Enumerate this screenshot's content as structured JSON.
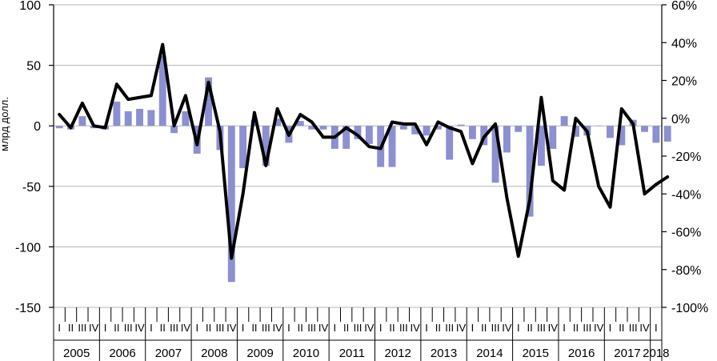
{
  "chart_data": {
    "type": "bar+line",
    "title": "",
    "ylabel": "млрд долл.",
    "ylim_left": [
      -150,
      100
    ],
    "yticks_left": [
      100,
      50,
      0,
      -50,
      -100,
      -150
    ],
    "ylim_right": [
      -100,
      60
    ],
    "yticks_right": [
      "60%",
      "40%",
      "20%",
      "0%",
      "-20%",
      "-40%",
      "-60%",
      "-80%",
      "-100%"
    ],
    "yticks_right_values": [
      60,
      40,
      20,
      0,
      -20,
      -40,
      -60,
      -80,
      -100
    ],
    "grid": "horizontal",
    "quarter_labels": [
      "I",
      "II",
      "III",
      "IV"
    ],
    "years": [
      "2005",
      "2006",
      "2007",
      "2008",
      "2009",
      "2010",
      "2011",
      "2012",
      "2013",
      "2014",
      "2015",
      "2016",
      "2017",
      "2018"
    ],
    "quarters_per_year": [
      4,
      4,
      4,
      4,
      4,
      4,
      4,
      4,
      4,
      4,
      4,
      4,
      4,
      1
    ],
    "series": [
      {
        "type": "bar",
        "axis": "left",
        "color": "#8c8fd0",
        "values": [
          -2,
          -3,
          8,
          -2,
          -3,
          20,
          12,
          14,
          13,
          58,
          -6,
          12,
          -23,
          40,
          -20,
          -129,
          -35,
          5,
          -33,
          6,
          -14,
          4,
          -3,
          -3,
          -19,
          -19,
          -11,
          -15,
          -34,
          -34,
          -3,
          -7,
          -8,
          -3,
          -28,
          1,
          -11,
          -16,
          -47,
          -22,
          -5,
          -75,
          -33,
          -19,
          8,
          -9,
          -8,
          0,
          -10,
          -16,
          5,
          -5,
          -14,
          -13
        ]
      },
      {
        "type": "line",
        "axis": "right",
        "color": "#000000",
        "values": [
          2,
          -5,
          8,
          -4,
          -5,
          18,
          10,
          11,
          12,
          39,
          -4,
          12,
          -14,
          19,
          -7,
          -74,
          -40,
          3,
          -25,
          5,
          -9,
          2,
          -2,
          -10,
          -10,
          -5,
          -9,
          -15,
          -16,
          -2,
          -3,
          -3,
          -14,
          -2,
          -5,
          -7,
          -24,
          -10,
          -3,
          -42,
          -73,
          -43,
          11,
          -33,
          -38,
          0,
          -7,
          -36,
          -47,
          5,
          -3,
          -40,
          -35,
          -31
        ]
      }
    ]
  }
}
